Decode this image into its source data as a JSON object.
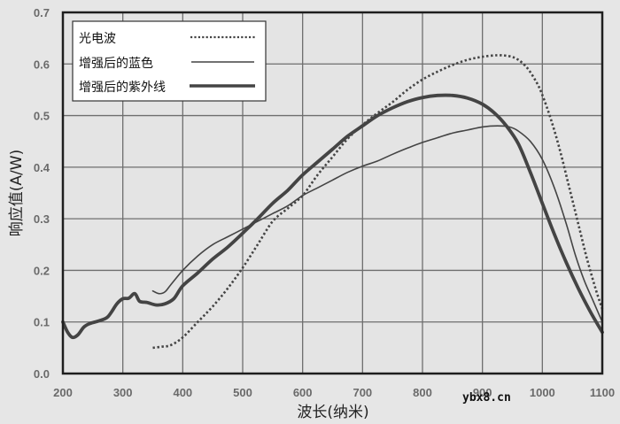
{
  "chart_data": {
    "type": "line",
    "title": "",
    "xlabel": "波长(纳米)",
    "ylabel": "响应值(A/W)",
    "xlim": [
      200,
      1100
    ],
    "ylim": [
      0.0,
      0.7
    ],
    "xticks": [
      "200",
      "300",
      "400",
      "500",
      "600",
      "700",
      "800",
      "900",
      "1000",
      "1100"
    ],
    "yticks": [
      "0.0",
      "0.1",
      "0.2",
      "0.3",
      "0.4",
      "0.5",
      "0.6",
      "0.7"
    ],
    "grid": true,
    "legend_position": "upper-left",
    "series": [
      {
        "name": "光电波",
        "style": "dotted",
        "points": [
          [
            350,
            0.05
          ],
          [
            365,
            0.052
          ],
          [
            380,
            0.055
          ],
          [
            400,
            0.07
          ],
          [
            425,
            0.1
          ],
          [
            450,
            0.13
          ],
          [
            475,
            0.165
          ],
          [
            500,
            0.205
          ],
          [
            525,
            0.25
          ],
          [
            550,
            0.295
          ],
          [
            575,
            0.32
          ],
          [
            600,
            0.345
          ],
          [
            625,
            0.385
          ],
          [
            650,
            0.42
          ],
          [
            675,
            0.455
          ],
          [
            700,
            0.482
          ],
          [
            725,
            0.505
          ],
          [
            750,
            0.526
          ],
          [
            775,
            0.55
          ],
          [
            800,
            0.57
          ],
          [
            825,
            0.585
          ],
          [
            850,
            0.598
          ],
          [
            875,
            0.608
          ],
          [
            900,
            0.614
          ],
          [
            925,
            0.617
          ],
          [
            945,
            0.615
          ],
          [
            960,
            0.608
          ],
          [
            975,
            0.592
          ],
          [
            990,
            0.565
          ],
          [
            1000,
            0.54
          ],
          [
            1015,
            0.49
          ],
          [
            1030,
            0.43
          ],
          [
            1045,
            0.36
          ],
          [
            1060,
            0.29
          ],
          [
            1075,
            0.22
          ],
          [
            1090,
            0.16
          ],
          [
            1100,
            0.125
          ]
        ]
      },
      {
        "name": "增强后的蓝色",
        "style": "thin",
        "points": [
          [
            350,
            0.16
          ],
          [
            360,
            0.155
          ],
          [
            370,
            0.158
          ],
          [
            380,
            0.172
          ],
          [
            400,
            0.2
          ],
          [
            425,
            0.228
          ],
          [
            450,
            0.25
          ],
          [
            475,
            0.265
          ],
          [
            500,
            0.28
          ],
          [
            525,
            0.295
          ],
          [
            550,
            0.31
          ],
          [
            575,
            0.325
          ],
          [
            600,
            0.345
          ],
          [
            625,
            0.36
          ],
          [
            650,
            0.375
          ],
          [
            675,
            0.39
          ],
          [
            700,
            0.402
          ],
          [
            725,
            0.412
          ],
          [
            750,
            0.425
          ],
          [
            775,
            0.437
          ],
          [
            800,
            0.448
          ],
          [
            825,
            0.457
          ],
          [
            850,
            0.466
          ],
          [
            875,
            0.472
          ],
          [
            900,
            0.478
          ],
          [
            925,
            0.48
          ],
          [
            945,
            0.478
          ],
          [
            960,
            0.47
          ],
          [
            980,
            0.45
          ],
          [
            1000,
            0.415
          ],
          [
            1020,
            0.36
          ],
          [
            1040,
            0.29
          ],
          [
            1055,
            0.23
          ],
          [
            1070,
            0.18
          ],
          [
            1085,
            0.14
          ],
          [
            1100,
            0.1
          ]
        ]
      },
      {
        "name": "增强后的紫外线",
        "style": "thick",
        "points": [
          [
            200,
            0.1
          ],
          [
            208,
            0.08
          ],
          [
            216,
            0.07
          ],
          [
            225,
            0.075
          ],
          [
            235,
            0.09
          ],
          [
            245,
            0.097
          ],
          [
            260,
            0.102
          ],
          [
            275,
            0.11
          ],
          [
            290,
            0.135
          ],
          [
            300,
            0.145
          ],
          [
            310,
            0.146
          ],
          [
            320,
            0.155
          ],
          [
            328,
            0.14
          ],
          [
            340,
            0.138
          ],
          [
            355,
            0.133
          ],
          [
            370,
            0.135
          ],
          [
            385,
            0.145
          ],
          [
            400,
            0.17
          ],
          [
            425,
            0.195
          ],
          [
            450,
            0.222
          ],
          [
            475,
            0.245
          ],
          [
            500,
            0.272
          ],
          [
            525,
            0.3
          ],
          [
            550,
            0.33
          ],
          [
            575,
            0.355
          ],
          [
            600,
            0.385
          ],
          [
            625,
            0.41
          ],
          [
            650,
            0.435
          ],
          [
            675,
            0.46
          ],
          [
            700,
            0.48
          ],
          [
            725,
            0.5
          ],
          [
            750,
            0.515
          ],
          [
            775,
            0.527
          ],
          [
            800,
            0.535
          ],
          [
            825,
            0.539
          ],
          [
            850,
            0.539
          ],
          [
            875,
            0.534
          ],
          [
            900,
            0.522
          ],
          [
            920,
            0.505
          ],
          [
            940,
            0.48
          ],
          [
            960,
            0.445
          ],
          [
            980,
            0.39
          ],
          [
            1000,
            0.33
          ],
          [
            1020,
            0.27
          ],
          [
            1040,
            0.215
          ],
          [
            1060,
            0.165
          ],
          [
            1080,
            0.12
          ],
          [
            1100,
            0.08
          ]
        ]
      }
    ],
    "watermark": "ybx8.cn"
  },
  "legend": {
    "items": [
      {
        "label": "光电波",
        "style": "dotted"
      },
      {
        "label": "增强后的蓝色",
        "style": "thin"
      },
      {
        "label": "增强后的紫外线",
        "style": "thick"
      }
    ]
  },
  "colors": {
    "background": "#e6e6e6",
    "plot_bg": "#e4e4e4",
    "grid": "#6e6e6e",
    "frame": "#1e1e1e",
    "line": "#444444",
    "legend_bg": "#ffffff"
  }
}
